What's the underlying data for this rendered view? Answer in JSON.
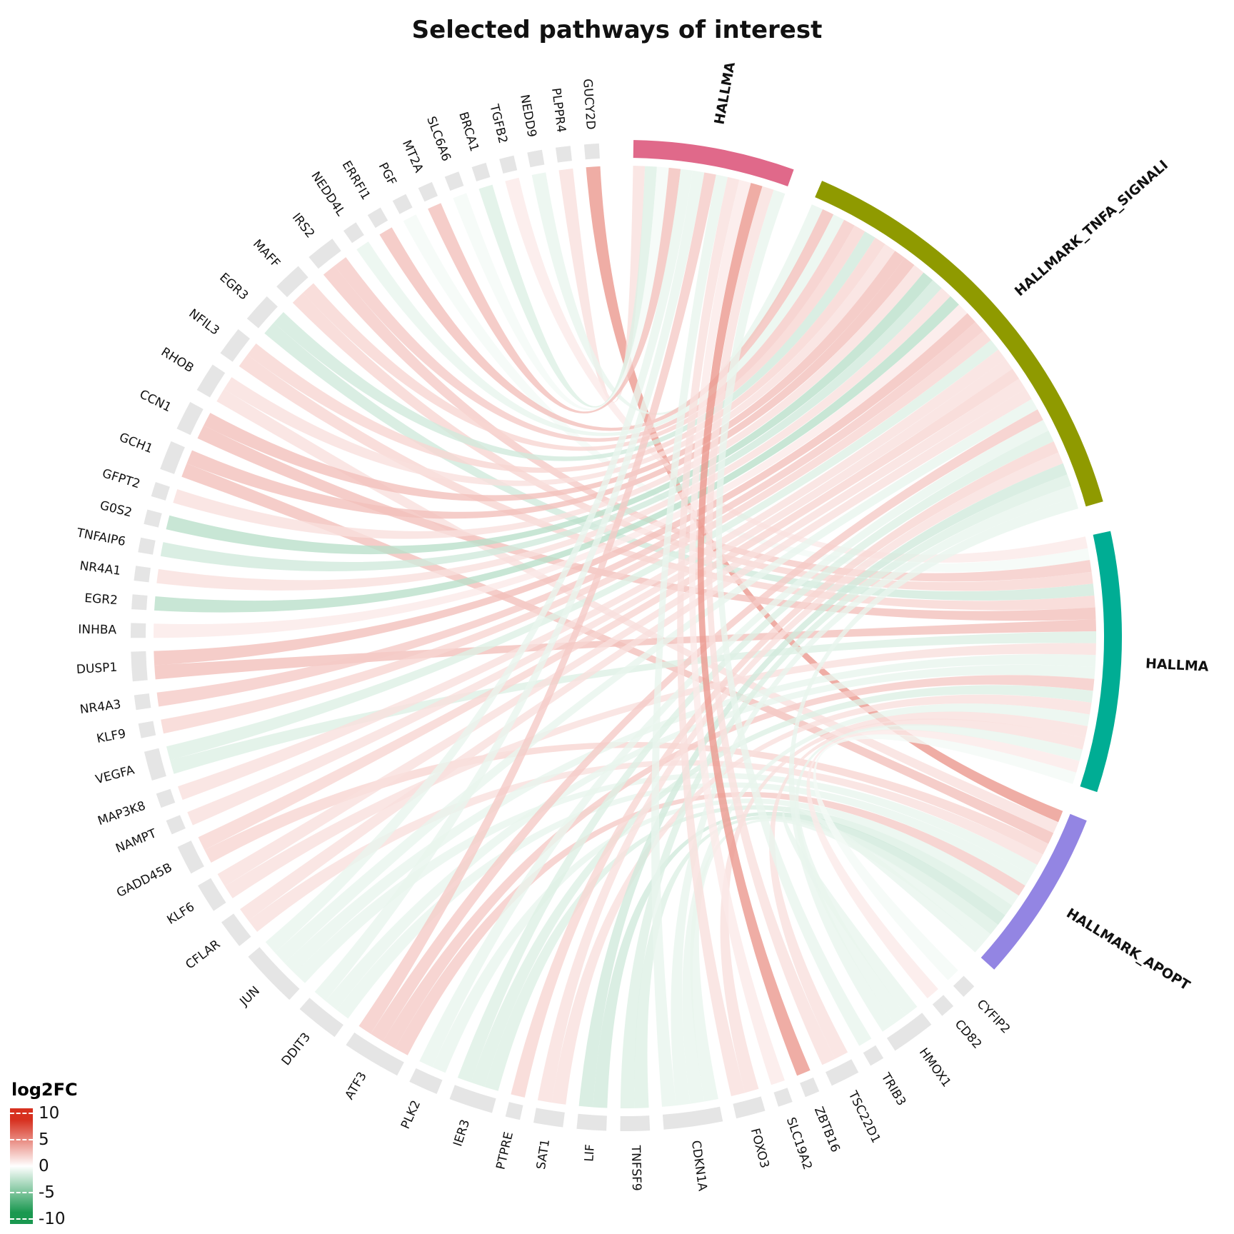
{
  "title": "Selected pathways of interest",
  "pathways": [
    {
      "label": "HALLMA",
      "color": "#e0698a"
    },
    {
      "label": "HALLMARK_TNFA_SIGNALI",
      "color": "#8f9a00"
    },
    {
      "label": "HALLMA",
      "color": "#00ad94"
    },
    {
      "label": "HALLMARK_APOPT",
      "color": "#9385e3"
    }
  ],
  "genes": [
    {
      "name": "GUCY2D",
      "log2fc": 5,
      "pathways": [
        3
      ]
    },
    {
      "name": "PLPPR4",
      "log2fc": 1.5,
      "pathways": [
        0
      ]
    },
    {
      "name": "NEDD9",
      "log2fc": -1,
      "pathways": [
        1
      ]
    },
    {
      "name": "TGFB2",
      "log2fc": 1,
      "pathways": [
        2
      ]
    },
    {
      "name": "BRCA1",
      "log2fc": -1.5,
      "pathways": [
        0
      ]
    },
    {
      "name": "SLC6A6",
      "log2fc": -0.5,
      "pathways": [
        0
      ]
    },
    {
      "name": "MT2A",
      "log2fc": 3,
      "pathways": [
        0
      ]
    },
    {
      "name": "PGF",
      "log2fc": -0.5,
      "pathways": [
        2
      ]
    },
    {
      "name": "ERRFI1",
      "log2fc": 3,
      "pathways": [
        1
      ]
    },
    {
      "name": "NEDD4L",
      "log2fc": -1,
      "pathways": [
        1
      ]
    },
    {
      "name": "IRS2",
      "log2fc": 2.5,
      "pathways": [
        1,
        2
      ]
    },
    {
      "name": "MAFF",
      "log2fc": 2,
      "pathways": [
        1,
        2
      ]
    },
    {
      "name": "EGR3",
      "log2fc": -2,
      "pathways": [
        1,
        2
      ]
    },
    {
      "name": "NFIL3",
      "log2fc": 2,
      "pathways": [
        1,
        2
      ]
    },
    {
      "name": "RHOB",
      "log2fc": 1.5,
      "pathways": [
        1,
        3
      ]
    },
    {
      "name": "CCN1",
      "log2fc": 3,
      "pathways": [
        1,
        2
      ]
    },
    {
      "name": "GCH1",
      "log2fc": 3,
      "pathways": [
        1,
        3
      ]
    },
    {
      "name": "GFPT2",
      "log2fc": 1.5,
      "pathways": [
        1
      ]
    },
    {
      "name": "G0S2",
      "log2fc": -3,
      "pathways": [
        1
      ]
    },
    {
      "name": "TNFAIP6",
      "log2fc": -2,
      "pathways": [
        1
      ]
    },
    {
      "name": "NR4A1",
      "log2fc": 1.5,
      "pathways": [
        1
      ]
    },
    {
      "name": "EGR2",
      "log2fc": -3,
      "pathways": [
        1
      ]
    },
    {
      "name": "INHBA",
      "log2fc": 1,
      "pathways": [
        1
      ]
    },
    {
      "name": "DUSP1",
      "log2fc": 3,
      "pathways": [
        1,
        2
      ]
    },
    {
      "name": "NR4A3",
      "log2fc": 2.5,
      "pathways": [
        1
      ]
    },
    {
      "name": "KLF9",
      "log2fc": 2,
      "pathways": [
        1
      ]
    },
    {
      "name": "VEGFA",
      "log2fc": -1.5,
      "pathways": [
        1,
        2
      ]
    },
    {
      "name": "MAP3K8",
      "log2fc": 1.5,
      "pathways": [
        1
      ]
    },
    {
      "name": "NAMPT",
      "log2fc": 1.5,
      "pathways": [
        1
      ]
    },
    {
      "name": "GADD45B",
      "log2fc": 2,
      "pathways": [
        1,
        3
      ]
    },
    {
      "name": "KLF6",
      "log2fc": 1.5,
      "pathways": [
        1,
        2
      ]
    },
    {
      "name": "CFLAR",
      "log2fc": 1.5,
      "pathways": [
        1,
        3
      ]
    },
    {
      "name": "JUN",
      "log2fc": -1,
      "pathways": [
        0,
        1,
        2,
        3
      ]
    },
    {
      "name": "DDIT3",
      "log2fc": -1,
      "pathways": [
        0,
        2,
        3
      ]
    },
    {
      "name": "ATF3",
      "log2fc": 2.5,
      "pathways": [
        0,
        1,
        2,
        3
      ]
    },
    {
      "name": "PLK2",
      "log2fc": -1,
      "pathways": [
        1,
        3
      ]
    },
    {
      "name": "IER3",
      "log2fc": -1.5,
      "pathways": [
        1,
        2,
        3
      ]
    },
    {
      "name": "PTPRE",
      "log2fc": 2,
      "pathways": [
        1
      ]
    },
    {
      "name": "SAT1",
      "log2fc": 1.5,
      "pathways": [
        1,
        2
      ]
    },
    {
      "name": "LIF",
      "log2fc": -2,
      "pathways": [
        1,
        3
      ]
    },
    {
      "name": "TNFSF9",
      "log2fc": -1.5,
      "pathways": [
        1,
        3
      ]
    },
    {
      "name": "CDKN1A",
      "log2fc": -1,
      "pathways": [
        0,
        1,
        2,
        3
      ]
    },
    {
      "name": "FOXO3",
      "log2fc": 1.5,
      "pathways": [
        0,
        2
      ]
    },
    {
      "name": "SLC19A2",
      "log2fc": 1,
      "pathways": [
        0
      ]
    },
    {
      "name": "ZBTB16",
      "log2fc": 5,
      "pathways": [
        0
      ]
    },
    {
      "name": "TSC22D1",
      "log2fc": 1.5,
      "pathways": [
        0,
        2
      ]
    },
    {
      "name": "TRIB3",
      "log2fc": -1,
      "pathways": [
        0
      ]
    },
    {
      "name": "HMOX1",
      "log2fc": -1,
      "pathways": [
        1,
        2,
        3
      ]
    },
    {
      "name": "CD82",
      "log2fc": 1,
      "pathways": [
        2
      ]
    },
    {
      "name": "CYFIP2",
      "log2fc": -0.5,
      "pathways": [
        2
      ]
    }
  ],
  "legend": {
    "title": "log2FC",
    "ticks": [
      "10",
      "5",
      "0",
      "-5",
      "-10"
    ],
    "high_color": "#d7301f",
    "mid_color": "#ffffff",
    "low_color": "#1a9850"
  }
}
